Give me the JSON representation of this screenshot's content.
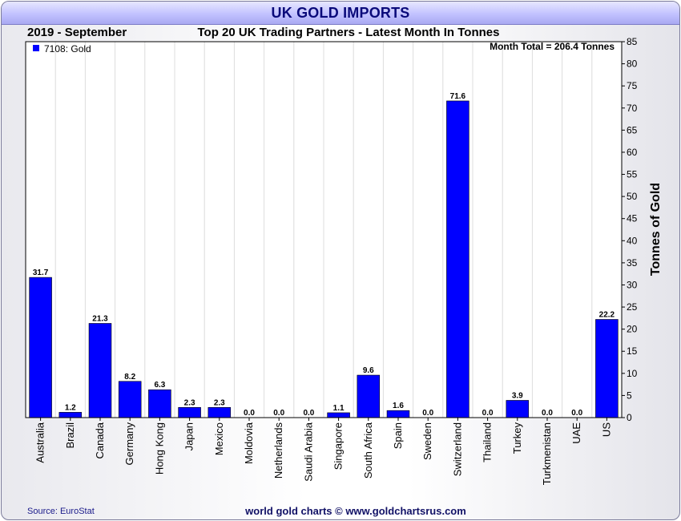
{
  "title": "UK GOLD IMPORTS",
  "header": {
    "period": "2019 - September",
    "subtitle": "Top 20 UK Trading Partners - Latest Month In Tonnes"
  },
  "legend": {
    "label": "7108: Gold",
    "color": "#0000ff"
  },
  "annotation": "Month Total = 206.4 Tonnes",
  "footer": {
    "source": "Source: EuroStat",
    "credit": "world gold charts © www.goldchartsrus.com"
  },
  "colors": {
    "bar": "#0000ff",
    "title_text": "#0a0a7a"
  },
  "chart_data": {
    "type": "bar",
    "title": "UK GOLD IMPORTS",
    "subtitle": "Top 20 UK Trading Partners - Latest Month In Tonnes",
    "ylabel": "Tonnes of Gold",
    "ylim": [
      0,
      85
    ],
    "yticks": [
      0,
      5,
      10,
      15,
      20,
      25,
      30,
      35,
      40,
      45,
      50,
      55,
      60,
      65,
      70,
      75,
      80,
      85
    ],
    "y_axis_side": "right",
    "legend_position": "top-left",
    "grid": true,
    "categories": [
      "Australia",
      "Brazil",
      "Canada",
      "Germany",
      "Hong Kong",
      "Japan",
      "Mexico",
      "Moldovia",
      "Netherlands",
      "Saudi Arabia",
      "Singapore",
      "South Africa",
      "Spain",
      "Sweden",
      "Switzerland",
      "Thailand",
      "Turkey",
      "Turkmenistan",
      "UAE",
      "US"
    ],
    "series": [
      {
        "name": "7108: Gold",
        "values": [
          31.7,
          1.2,
          21.3,
          8.2,
          6.3,
          2.3,
          2.3,
          0.0,
          0.0,
          0.0,
          1.1,
          9.6,
          1.6,
          0.0,
          71.6,
          0.0,
          3.9,
          0.0,
          0.0,
          22.2
        ]
      }
    ]
  }
}
